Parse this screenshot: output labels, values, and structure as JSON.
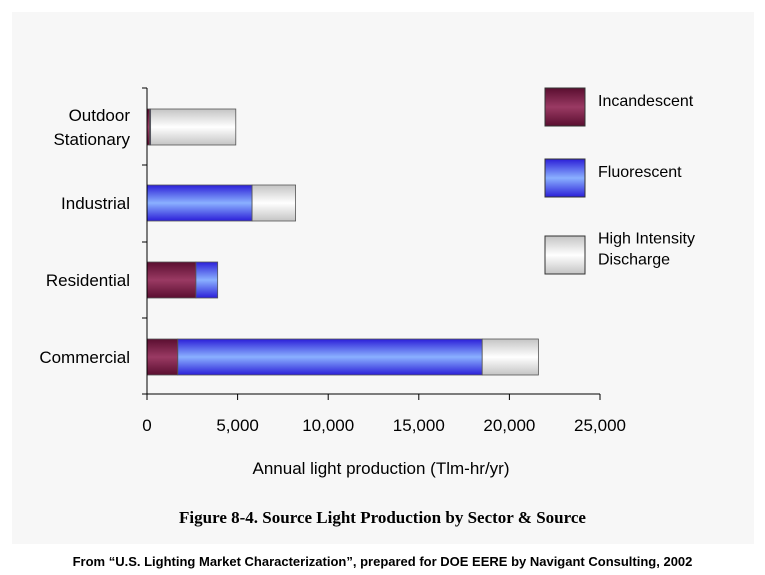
{
  "chart_data": {
    "type": "bar",
    "orientation": "horizontal",
    "stacked": true,
    "categories": [
      "Outdoor Stationary",
      "Industrial",
      "Residential",
      "Commercial"
    ],
    "category_label_lines": [
      [
        "Outdoor",
        "Stationary"
      ],
      [
        "Industrial"
      ],
      [
        "Residential"
      ],
      [
        "Commercial"
      ]
    ],
    "series": [
      {
        "name": "Incandescent",
        "color": "#7a1f46",
        "values": [
          150,
          0,
          2700,
          1700
        ]
      },
      {
        "name": "Fluorescent",
        "color": "#4f54ff",
        "values": [
          50,
          5800,
          1200,
          16800
        ]
      },
      {
        "name": "High Intensity Discharge",
        "color": "#e3e3e3",
        "values": [
          4700,
          2400,
          0,
          3100
        ]
      }
    ],
    "legend_label_lines": [
      [
        "Incandescent"
      ],
      [
        "Fluorescent"
      ],
      [
        "High Intensity",
        "Discharge"
      ]
    ],
    "x_ticks": [
      0,
      5000,
      10000,
      15000,
      20000,
      25000
    ],
    "x_tick_labels": [
      "0",
      "5,000",
      "10,000",
      "15,000",
      "20,000",
      "25,000"
    ],
    "xlim": [
      0,
      25000
    ],
    "xlabel": "Annual light production (Tlm-hr/yr)",
    "ylabel": "",
    "grid": false,
    "legend_position": "right"
  },
  "figure_caption": "Figure 8-4. Source Light Production by Sector & Source",
  "source_note": "From “U.S. Lighting Market Characterization”, prepared for DOE EERE by Navigant Consulting, 2002"
}
